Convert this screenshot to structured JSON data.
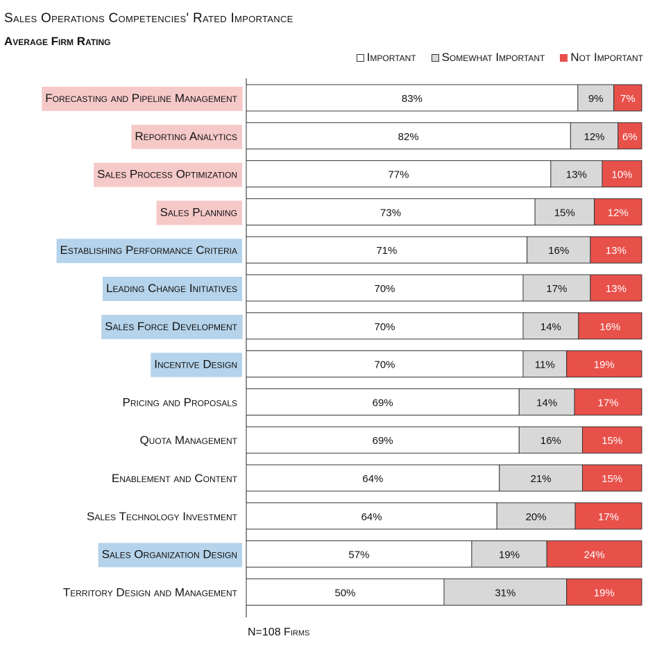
{
  "title": "Sales Operations Competencies' Rated Importance",
  "subtitle": "Average Firm Rating",
  "footnote": "N=108 Firms",
  "colors": {
    "important": "#ffffff",
    "somewhat": "#d8d8d8",
    "not": "#e8504a",
    "highlight_pink": "#f6c9c9",
    "highlight_blue": "#b5d3ea"
  },
  "legend": [
    {
      "key": "important",
      "label": "Important"
    },
    {
      "key": "somewhat",
      "label": "Somewhat Important"
    },
    {
      "key": "not",
      "label": "Not Important"
    }
  ],
  "chart_data": {
    "type": "bar",
    "orientation": "horizontal",
    "stacked": true,
    "title": "Sales Operations Competencies' Rated Importance",
    "subtitle": "Average Firm Rating",
    "legend_position": "top-right",
    "categories": [
      "Forecasting and Pipeline Management",
      "Reporting Analytics",
      "Sales Process Optimization",
      "Sales Planning",
      "Establishing Performance Criteria",
      "Leading Change Initiatives",
      "Sales Force Development",
      "Incentive Design",
      "Pricing and Proposals",
      "Quota Management",
      "Enablement and Content",
      "Sales Technology Investment",
      "Sales Organization Design",
      "Territory Design and Management"
    ],
    "category_highlight": [
      "pink",
      "pink",
      "pink",
      "pink",
      "blue",
      "blue",
      "blue",
      "blue",
      "none",
      "none",
      "none",
      "none",
      "blue",
      "none"
    ],
    "series": [
      {
        "name": "Important",
        "key": "important",
        "values": [
          83,
          82,
          77,
          73,
          71,
          70,
          70,
          70,
          69,
          69,
          64,
          64,
          57,
          50
        ]
      },
      {
        "name": "Somewhat Important",
        "key": "somewhat",
        "values": [
          9,
          12,
          13,
          15,
          16,
          17,
          14,
          11,
          14,
          16,
          21,
          20,
          19,
          31
        ]
      },
      {
        "name": "Not Important",
        "key": "not",
        "values": [
          7,
          6,
          10,
          12,
          13,
          13,
          16,
          19,
          17,
          15,
          15,
          17,
          24,
          19
        ]
      }
    ],
    "value_suffix": "%"
  }
}
